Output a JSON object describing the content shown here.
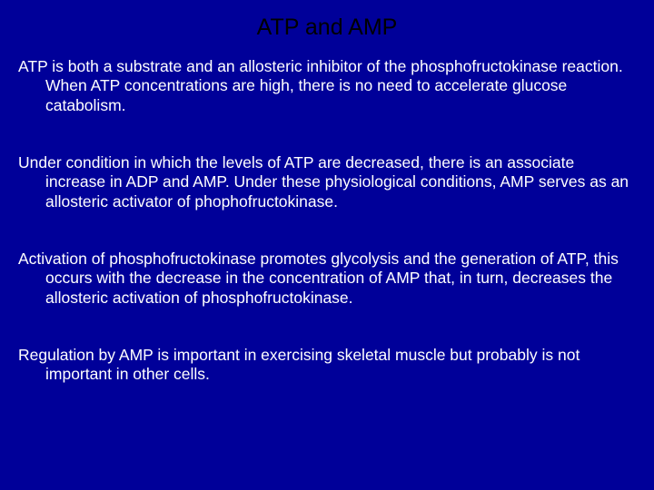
{
  "slide": {
    "background_color": "#000099",
    "title_color": "#000000",
    "text_color": "#ffffff",
    "title": "ATP and AMP",
    "title_fontsize": 25,
    "body_fontsize": 17.5,
    "paragraphs": [
      "ATP is both a substrate and an allosteric inhibitor of the phosphofructokinase reaction. When ATP concentrations are high, there is no need to accelerate glucose catabolism.",
      "Under condition in which the levels of ATP are decreased, there is an associate increase in ADP and AMP. Under these physiological conditions, AMP serves as an allosteric activator of phophofructokinase.",
      "Activation of phosphofructokinase promotes glycolysis and the generation of ATP, this occurs with the decrease in the concentration of AMP that, in turn, decreases the allosteric activation of phosphofructokinase.",
      "Regulation by AMP is important in exercising skeletal muscle but probably is not important in other cells."
    ]
  }
}
